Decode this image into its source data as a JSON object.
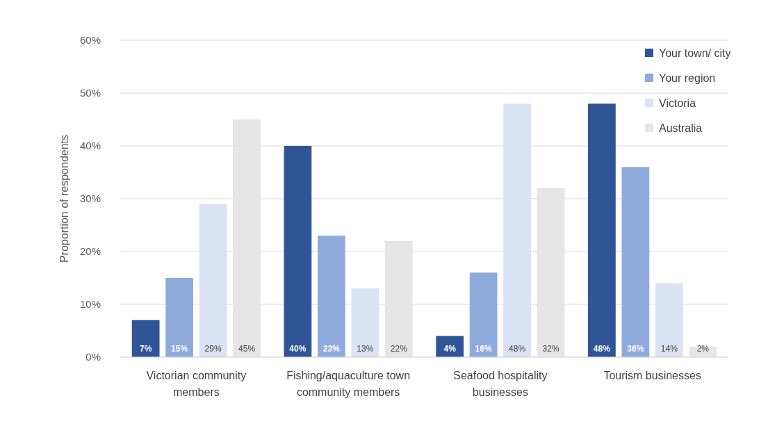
{
  "chart_data": {
    "type": "bar",
    "ylabel": "Proportion of respondents",
    "categories": [
      "Victorian community members",
      "Fishing/aquaculture town community members",
      "Seafood hospitality businesses",
      "Tourism businesses"
    ],
    "series": [
      {
        "name": "Your town/ city",
        "color": "#2f5597",
        "values": [
          7,
          40,
          4,
          48
        ],
        "value_labels": [
          "7%",
          "40%",
          "4%",
          "48%"
        ]
      },
      {
        "name": "Your region",
        "color": "#8faadc",
        "values": [
          15,
          23,
          16,
          36
        ],
        "value_labels": [
          "15%",
          "23%",
          "16%",
          "36%"
        ]
      },
      {
        "name": "Victoria",
        "color": "#dae3f3",
        "values": [
          29,
          13,
          48,
          14
        ],
        "value_labels": [
          "29%",
          "13%",
          "48%",
          "14%"
        ]
      },
      {
        "name": "Australia",
        "color": "#e7e6e6",
        "values": [
          45,
          22,
          32,
          2
        ],
        "value_labels": [
          "45%",
          "22%",
          "32%",
          "2%"
        ]
      }
    ],
    "ylim": [
      0,
      60
    ],
    "yticks": [
      {
        "value": 0,
        "label": "0%"
      },
      {
        "value": 10,
        "label": "10%"
      },
      {
        "value": 20,
        "label": "20%"
      },
      {
        "value": 30,
        "label": "30%"
      },
      {
        "value": 40,
        "label": "40%"
      },
      {
        "value": 50,
        "label": "50%"
      },
      {
        "value": 60,
        "label": "60%"
      }
    ],
    "grid": "y",
    "legend": "top right"
  }
}
